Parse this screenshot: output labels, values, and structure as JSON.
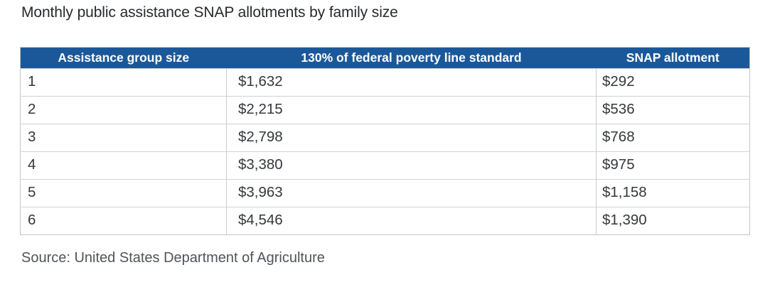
{
  "title": "Monthly public assistance SNAP allotments by family size",
  "table": {
    "columns": [
      "Assistance group size",
      "130% of federal poverty line standard",
      "SNAP allotment"
    ],
    "rows": [
      [
        "1",
        "$1,632",
        "$292"
      ],
      [
        "2",
        "$2,215",
        "$536"
      ],
      [
        "3",
        "$2,798",
        "$768"
      ],
      [
        "4",
        "$3,380",
        "$975"
      ],
      [
        "5",
        "$3,963",
        "$1,158"
      ],
      [
        "6",
        "$4,546",
        "$1,390"
      ]
    ]
  },
  "source": "Source: United States Department of Agriculture",
  "colors": {
    "header_bg": "#1b5899",
    "header_text": "#ffffff",
    "outer_border": "#c6c6c6",
    "row_divider": "#d2d2d2",
    "col_divider": "#cccccc",
    "title_text": "#26292e",
    "cell_text": "#34383c",
    "source_text": "#4f545a",
    "page_bg": "#ffffff"
  },
  "chart_data": {
    "type": "table",
    "title": "Monthly public assistance SNAP allotments by family size",
    "columns": [
      "Assistance group size",
      "130% of federal poverty line standard",
      "SNAP allotment"
    ],
    "rows": [
      [
        "1",
        "$1,632",
        "$292"
      ],
      [
        "2",
        "$2,215",
        "$536"
      ],
      [
        "3",
        "$2,798",
        "$768"
      ],
      [
        "4",
        "$3,380",
        "$975"
      ],
      [
        "5",
        "$3,963",
        "$1,158"
      ],
      [
        "6",
        "$4,546",
        "$1,390"
      ]
    ],
    "source": "Source: United States Department of Agriculture"
  }
}
